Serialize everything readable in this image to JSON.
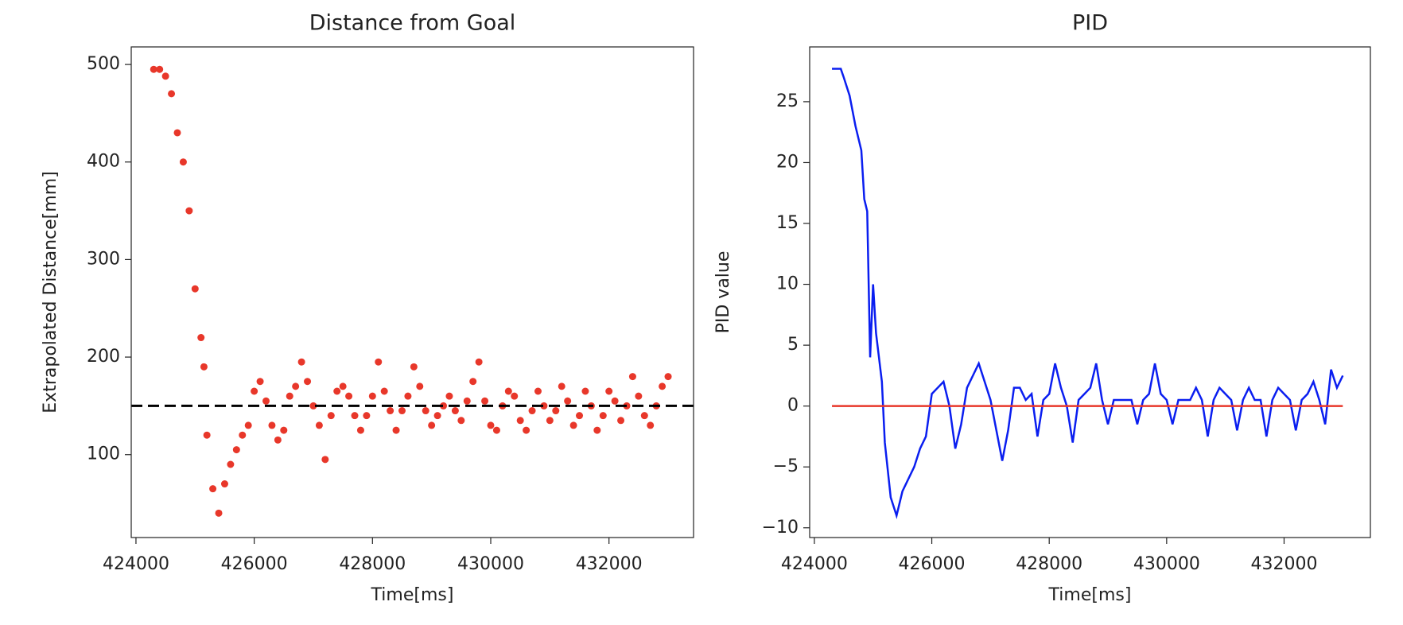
{
  "chart_data": [
    {
      "type": "scatter",
      "title": "Distance from Goal",
      "x_label": "Time[ms]",
      "y_label": "Extrapolated Distance[mm]",
      "color": "#e8372a",
      "x": [
        424300,
        424400,
        424500,
        424600,
        424700,
        424800,
        424900,
        425000,
        425100,
        425150,
        425200,
        425300,
        425400,
        425500,
        425600,
        425700,
        425800,
        425900,
        426000,
        426100,
        426200,
        426300,
        426400,
        426500,
        426600,
        426700,
        426800,
        426900,
        427000,
        427100,
        427200,
        427300,
        427400,
        427500,
        427600,
        427700,
        427800,
        427900,
        428000,
        428100,
        428200,
        428300,
        428400,
        428500,
        428600,
        428700,
        428800,
        428900,
        429000,
        429100,
        429200,
        429300,
        429400,
        429500,
        429600,
        429700,
        429800,
        429900,
        430000,
        430100,
        430200,
        430300,
        430400,
        430500,
        430600,
        430700,
        430800,
        430900,
        431000,
        431100,
        431200,
        431300,
        431400,
        431500,
        431600,
        431700,
        431800,
        431900,
        432000,
        432100,
        432200,
        432300,
        432400,
        432500,
        432600,
        432700,
        432800,
        432900,
        433000
      ],
      "values": [
        495,
        495,
        488,
        470,
        430,
        400,
        350,
        270,
        220,
        190,
        120,
        65,
        40,
        70,
        90,
        105,
        120,
        130,
        165,
        175,
        155,
        130,
        115,
        125,
        160,
        170,
        195,
        175,
        150,
        130,
        95,
        140,
        165,
        170,
        160,
        140,
        125,
        140,
        160,
        195,
        165,
        145,
        125,
        145,
        160,
        190,
        170,
        145,
        130,
        140,
        150,
        160,
        145,
        135,
        155,
        175,
        195,
        155,
        130,
        125,
        150,
        165,
        160,
        135,
        125,
        145,
        165,
        150,
        135,
        145,
        170,
        155,
        130,
        140,
        165,
        150,
        125,
        140,
        165,
        155,
        135,
        150,
        180,
        160,
        140,
        130,
        150,
        170,
        180
      ],
      "hline": {
        "value": 150,
        "color": "#000000",
        "style": "dashed"
      },
      "xlim": [
        423920,
        433430
      ],
      "ylim": [
        15,
        518
      ],
      "xticks": [
        424000,
        426000,
        428000,
        430000,
        432000
      ],
      "yticks": [
        100,
        200,
        300,
        400,
        500
      ]
    },
    {
      "type": "line",
      "title": "PID",
      "x_label": "Time[ms]",
      "y_label": "PID value",
      "color": "#0a1ef0",
      "x": [
        424300,
        424450,
        424500,
        424600,
        424700,
        424800,
        424850,
        424900,
        424950,
        425000,
        425050,
        425100,
        425150,
        425200,
        425300,
        425400,
        425500,
        425600,
        425700,
        425800,
        425900,
        426000,
        426100,
        426200,
        426300,
        426400,
        426500,
        426600,
        426700,
        426800,
        426900,
        427000,
        427100,
        427200,
        427300,
        427400,
        427500,
        427600,
        427700,
        427800,
        427900,
        428000,
        428100,
        428200,
        428300,
        428400,
        428500,
        428600,
        428700,
        428800,
        428900,
        429000,
        429100,
        429200,
        429300,
        429400,
        429500,
        429600,
        429700,
        429800,
        429900,
        430000,
        430100,
        430200,
        430300,
        430400,
        430500,
        430600,
        430700,
        430800,
        430900,
        431000,
        431100,
        431200,
        431300,
        431400,
        431500,
        431600,
        431700,
        431800,
        431900,
        432000,
        432100,
        432200,
        432300,
        432400,
        432500,
        432600,
        432700,
        432800,
        432900,
        433000
      ],
      "values": [
        27.7,
        27.7,
        27,
        25.5,
        23,
        21,
        17,
        16,
        4,
        10,
        6,
        4,
        2,
        -3,
        -7.5,
        -9,
        -7,
        -6,
        -5,
        -3.5,
        -2.5,
        1,
        1.5,
        2,
        0,
        -3.5,
        -1.5,
        1.5,
        2.5,
        3.5,
        2,
        0.5,
        -2,
        -4.5,
        -2,
        1.5,
        1.5,
        0.5,
        1,
        -2.5,
        0.5,
        1,
        3.5,
        1.5,
        0,
        -3,
        0.5,
        1,
        1.5,
        3.5,
        0.5,
        -1.5,
        0.5,
        0.5,
        0.5,
        0.5,
        -1.5,
        0.5,
        1,
        3.5,
        1,
        0.5,
        -1.5,
        0.5,
        0.5,
        0.5,
        1.5,
        0.5,
        -2.5,
        0.5,
        1.5,
        1,
        0.5,
        -2,
        0.5,
        1.5,
        0.5,
        0.5,
        -2.5,
        0.5,
        1.5,
        1,
        0.5,
        -2,
        0.5,
        1,
        2,
        0.5,
        -1.5,
        3,
        1.5,
        2.5
      ],
      "hline": {
        "value": 0,
        "color": "#e8372a",
        "style": "solid"
      },
      "xlim": [
        423920,
        433470
      ],
      "ylim": [
        -10.8,
        29.5
      ],
      "xticks": [
        424000,
        426000,
        428000,
        430000,
        432000
      ],
      "yticks": [
        {
          "value": -10,
          "label": "−10"
        },
        {
          "value": -5,
          "label": "−5"
        },
        0,
        5,
        10,
        15,
        20,
        25
      ]
    }
  ]
}
